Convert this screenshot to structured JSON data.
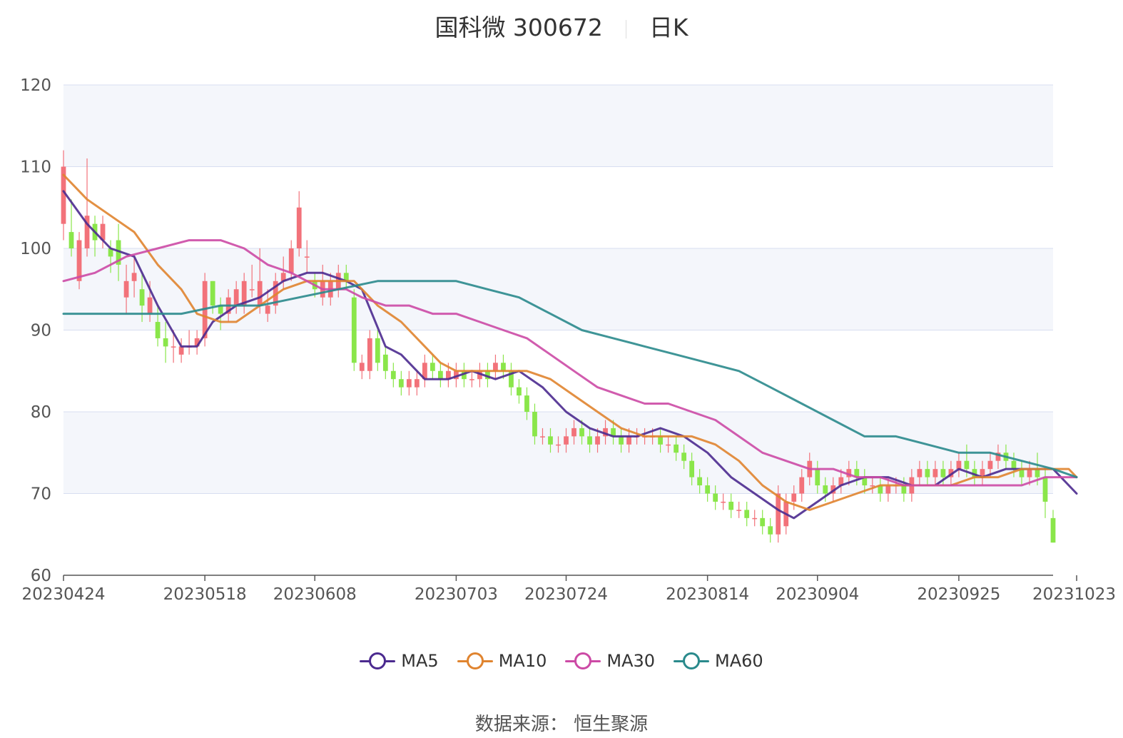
{
  "title": {
    "main": "国科微 300672",
    "sub": "日K"
  },
  "source": "数据来源： 恒生聚源",
  "legend": [
    {
      "name": "MA5",
      "color": "#4b2a8f"
    },
    {
      "name": "MA10",
      "color": "#e0842f"
    },
    {
      "name": "MA30",
      "color": "#cc4aa5"
    },
    {
      "name": "MA60",
      "color": "#2a8a8c"
    }
  ],
  "colors": {
    "up": "#f2727a",
    "down": "#8ae64a",
    "band": "#f4f6fb",
    "grid": "#d8def0"
  },
  "chart_data": {
    "type": "candlestick",
    "y_ticks": [
      60,
      70,
      80,
      90,
      100,
      110,
      120
    ],
    "ylim": [
      60,
      120
    ],
    "x_tick_labels": [
      "20230424",
      "20230518",
      "20230608",
      "20230703",
      "20230724",
      "20230814",
      "20230904",
      "20230925",
      "20231023"
    ],
    "x_tick_index": [
      0,
      18,
      32,
      50,
      64,
      82,
      96,
      114,
      129
    ],
    "candles": [
      [
        103,
        110,
        112,
        101
      ],
      [
        102,
        100,
        106,
        99
      ],
      [
        96,
        101,
        102,
        95
      ],
      [
        100,
        104,
        111,
        99
      ],
      [
        103,
        101,
        104,
        99
      ],
      [
        101,
        103,
        104,
        100
      ],
      [
        100,
        99,
        101,
        97
      ],
      [
        101,
        98,
        103,
        96
      ],
      [
        94,
        96,
        98,
        92
      ],
      [
        96,
        97,
        99,
        94
      ],
      [
        95,
        93,
        97,
        91
      ],
      [
        92,
        94,
        96,
        91
      ],
      [
        91,
        89,
        93,
        88
      ],
      [
        89,
        88,
        91,
        86
      ],
      [
        88,
        88,
        90,
        86
      ],
      [
        87,
        88,
        89,
        86
      ],
      [
        88,
        88,
        90,
        87
      ],
      [
        88,
        89,
        90,
        87
      ],
      [
        89,
        96,
        97,
        88
      ],
      [
        96,
        93,
        96,
        92
      ],
      [
        93,
        92,
        94,
        90
      ],
      [
        92,
        94,
        95,
        91
      ],
      [
        93,
        95,
        96,
        92
      ],
      [
        93,
        96,
        97,
        92
      ],
      [
        95,
        95,
        98,
        94
      ],
      [
        93,
        96,
        100,
        92
      ],
      [
        92,
        93,
        95,
        91
      ],
      [
        93,
        96,
        97,
        92
      ],
      [
        96,
        97,
        99,
        95
      ],
      [
        97,
        100,
        101,
        96
      ],
      [
        100,
        105,
        107,
        99
      ],
      [
        99,
        99,
        101,
        97
      ],
      [
        96,
        95,
        97,
        94
      ],
      [
        94,
        96,
        98,
        93
      ],
      [
        94,
        96,
        97,
        93
      ],
      [
        95,
        97,
        98,
        94
      ],
      [
        97,
        96,
        98,
        95
      ],
      [
        94,
        86,
        95,
        85
      ],
      [
        85,
        86,
        87,
        84
      ],
      [
        85,
        89,
        90,
        84
      ],
      [
        89,
        86,
        90,
        85
      ],
      [
        87,
        85,
        88,
        84
      ],
      [
        85,
        84,
        86,
        83
      ],
      [
        84,
        83,
        85,
        82
      ],
      [
        83,
        84,
        85,
        82
      ],
      [
        83,
        84,
        85,
        82
      ],
      [
        84,
        86,
        87,
        83
      ],
      [
        86,
        85,
        87,
        84
      ],
      [
        85,
        84,
        86,
        83
      ],
      [
        84,
        85,
        86,
        83
      ],
      [
        84,
        85,
        86,
        83
      ],
      [
        85,
        84,
        86,
        83
      ],
      [
        84,
        84,
        85,
        83
      ],
      [
        84,
        85,
        86,
        83
      ],
      [
        85,
        84,
        86,
        83
      ],
      [
        85,
        86,
        87,
        84
      ],
      [
        86,
        85,
        87,
        84
      ],
      [
        85,
        83,
        86,
        82
      ],
      [
        83,
        82,
        84,
        81
      ],
      [
        82,
        80,
        83,
        79
      ],
      [
        80,
        77,
        81,
        76
      ],
      [
        77,
        77,
        78,
        76
      ],
      [
        77,
        76,
        78,
        75
      ],
      [
        76,
        76,
        77,
        75
      ],
      [
        76,
        77,
        78,
        75
      ],
      [
        77,
        78,
        79,
        76
      ],
      [
        78,
        77,
        79,
        76
      ],
      [
        77,
        76,
        78,
        75
      ],
      [
        76,
        77,
        78,
        75
      ],
      [
        77,
        78,
        79,
        76
      ],
      [
        78,
        77,
        79,
        76
      ],
      [
        77,
        76,
        78,
        75
      ],
      [
        76,
        77,
        78,
        75
      ],
      [
        77,
        77,
        78,
        76
      ],
      [
        77,
        77,
        78,
        76
      ],
      [
        77,
        77,
        78,
        76
      ],
      [
        77,
        76,
        78,
        75
      ],
      [
        76,
        76,
        77,
        75
      ],
      [
        76,
        75,
        77,
        74
      ],
      [
        75,
        74,
        76,
        73
      ],
      [
        74,
        72,
        75,
        71
      ],
      [
        72,
        71,
        73,
        70
      ],
      [
        71,
        70,
        72,
        69
      ],
      [
        70,
        69,
        71,
        68
      ],
      [
        69,
        69,
        70,
        68
      ],
      [
        69,
        68,
        70,
        67
      ],
      [
        68,
        68,
        69,
        67
      ],
      [
        68,
        67,
        69,
        66
      ],
      [
        67,
        67,
        68,
        66
      ],
      [
        67,
        66,
        68,
        65
      ],
      [
        66,
        65,
        67,
        64
      ],
      [
        65,
        70,
        71,
        64
      ],
      [
        66,
        69,
        70,
        65
      ],
      [
        69,
        70,
        71,
        68
      ],
      [
        70,
        72,
        73,
        69
      ],
      [
        72,
        74,
        75,
        71
      ],
      [
        73,
        71,
        74,
        70
      ],
      [
        71,
        70,
        72,
        69
      ],
      [
        70,
        71,
        72,
        69
      ],
      [
        71,
        72,
        73,
        70
      ],
      [
        72,
        73,
        74,
        71
      ],
      [
        73,
        72,
        74,
        71
      ],
      [
        72,
        71,
        73,
        70
      ],
      [
        71,
        71,
        72,
        70
      ],
      [
        71,
        70,
        72,
        69
      ],
      [
        70,
        71,
        72,
        69
      ],
      [
        71,
        71,
        72,
        70
      ],
      [
        71,
        70,
        72,
        69
      ],
      [
        70,
        72,
        73,
        69
      ],
      [
        72,
        73,
        74,
        71
      ],
      [
        73,
        72,
        74,
        71
      ],
      [
        72,
        73,
        74,
        71
      ],
      [
        73,
        72,
        74,
        71
      ],
      [
        72,
        73,
        74,
        71
      ],
      [
        73,
        74,
        75,
        72
      ],
      [
        74,
        73,
        76,
        72
      ],
      [
        73,
        72,
        74,
        71
      ],
      [
        72,
        73,
        74,
        71
      ],
      [
        73,
        74,
        75,
        72
      ],
      [
        74,
        75,
        76,
        73
      ],
      [
        75,
        74,
        76,
        73
      ],
      [
        74,
        73,
        75,
        72
      ],
      [
        73,
        72,
        74,
        71
      ],
      [
        72,
        73,
        74,
        71
      ],
      [
        73,
        72,
        75,
        71
      ],
      [
        72,
        69,
        73,
        67
      ],
      [
        67,
        64,
        68,
        64
      ]
    ],
    "series": [
      {
        "name": "MA5",
        "points": [
          [
            0,
            107
          ],
          [
            3,
            103
          ],
          [
            6,
            100
          ],
          [
            9,
            99
          ],
          [
            12,
            93
          ],
          [
            15,
            88
          ],
          [
            17,
            88
          ],
          [
            19,
            91
          ],
          [
            22,
            93
          ],
          [
            25,
            94
          ],
          [
            28,
            96
          ],
          [
            31,
            97
          ],
          [
            33,
            97
          ],
          [
            36,
            96
          ],
          [
            38,
            95
          ],
          [
            41,
            88
          ],
          [
            43,
            87
          ],
          [
            46,
            84
          ],
          [
            49,
            84
          ],
          [
            52,
            85
          ],
          [
            55,
            84
          ],
          [
            58,
            85
          ],
          [
            61,
            83
          ],
          [
            64,
            80
          ],
          [
            67,
            78
          ],
          [
            70,
            77
          ],
          [
            73,
            77
          ],
          [
            76,
            78
          ],
          [
            79,
            77
          ],
          [
            82,
            75
          ],
          [
            85,
            72
          ],
          [
            88,
            70
          ],
          [
            91,
            68
          ],
          [
            93,
            67
          ],
          [
            96,
            69
          ],
          [
            99,
            71
          ],
          [
            102,
            72
          ],
          [
            105,
            72
          ],
          [
            108,
            71
          ],
          [
            111,
            71
          ],
          [
            114,
            73
          ],
          [
            117,
            72
          ],
          [
            120,
            73
          ],
          [
            123,
            73
          ],
          [
            126,
            73
          ],
          [
            128,
            71
          ],
          [
            129,
            70
          ]
        ]
      },
      {
        "name": "MA10",
        "points": [
          [
            0,
            109
          ],
          [
            3,
            106
          ],
          [
            6,
            104
          ],
          [
            9,
            102
          ],
          [
            12,
            98
          ],
          [
            15,
            95
          ],
          [
            17,
            92
          ],
          [
            20,
            91
          ],
          [
            22,
            91
          ],
          [
            25,
            93
          ],
          [
            28,
            95
          ],
          [
            31,
            96
          ],
          [
            34,
            96
          ],
          [
            37,
            96
          ],
          [
            40,
            93
          ],
          [
            43,
            91
          ],
          [
            46,
            88
          ],
          [
            48,
            86
          ],
          [
            50,
            85
          ],
          [
            53,
            85
          ],
          [
            56,
            85
          ],
          [
            59,
            85
          ],
          [
            62,
            84
          ],
          [
            65,
            82
          ],
          [
            68,
            80
          ],
          [
            71,
            78
          ],
          [
            74,
            77
          ],
          [
            77,
            77
          ],
          [
            80,
            77
          ],
          [
            83,
            76
          ],
          [
            86,
            74
          ],
          [
            89,
            71
          ],
          [
            92,
            69
          ],
          [
            95,
            68
          ],
          [
            98,
            69
          ],
          [
            101,
            70
          ],
          [
            104,
            71
          ],
          [
            107,
            71
          ],
          [
            110,
            71
          ],
          [
            113,
            71
          ],
          [
            116,
            72
          ],
          [
            119,
            72
          ],
          [
            122,
            73
          ],
          [
            125,
            73
          ],
          [
            128,
            73
          ],
          [
            129,
            72
          ]
        ]
      },
      {
        "name": "MA30",
        "points": [
          [
            0,
            96
          ],
          [
            4,
            97
          ],
          [
            8,
            99
          ],
          [
            12,
            100
          ],
          [
            16,
            101
          ],
          [
            18,
            101
          ],
          [
            20,
            101
          ],
          [
            23,
            100
          ],
          [
            26,
            98
          ],
          [
            29,
            97
          ],
          [
            33,
            95
          ],
          [
            36,
            95
          ],
          [
            38,
            94
          ],
          [
            41,
            93
          ],
          [
            44,
            93
          ],
          [
            47,
            92
          ],
          [
            50,
            92
          ],
          [
            53,
            91
          ],
          [
            56,
            90
          ],
          [
            59,
            89
          ],
          [
            62,
            87
          ],
          [
            65,
            85
          ],
          [
            68,
            83
          ],
          [
            71,
            82
          ],
          [
            74,
            81
          ],
          [
            77,
            81
          ],
          [
            80,
            80
          ],
          [
            83,
            79
          ],
          [
            86,
            77
          ],
          [
            89,
            75
          ],
          [
            92,
            74
          ],
          [
            95,
            73
          ],
          [
            98,
            73
          ],
          [
            101,
            72
          ],
          [
            104,
            72
          ],
          [
            107,
            71
          ],
          [
            110,
            71
          ],
          [
            113,
            71
          ],
          [
            116,
            71
          ],
          [
            119,
            71
          ],
          [
            122,
            71
          ],
          [
            125,
            72
          ],
          [
            128,
            72
          ],
          [
            129,
            72
          ]
        ]
      },
      {
        "name": "MA60",
        "points": [
          [
            0,
            92
          ],
          [
            5,
            92
          ],
          [
            10,
            92
          ],
          [
            15,
            92
          ],
          [
            20,
            93
          ],
          [
            25,
            93
          ],
          [
            30,
            94
          ],
          [
            35,
            95
          ],
          [
            40,
            96
          ],
          [
            45,
            96
          ],
          [
            50,
            96
          ],
          [
            54,
            95
          ],
          [
            58,
            94
          ],
          [
            62,
            92
          ],
          [
            66,
            90
          ],
          [
            70,
            89
          ],
          [
            74,
            88
          ],
          [
            78,
            87
          ],
          [
            82,
            86
          ],
          [
            86,
            85
          ],
          [
            90,
            83
          ],
          [
            94,
            81
          ],
          [
            98,
            79
          ],
          [
            102,
            77
          ],
          [
            106,
            77
          ],
          [
            110,
            76
          ],
          [
            114,
            75
          ],
          [
            118,
            75
          ],
          [
            122,
            74
          ],
          [
            126,
            73
          ],
          [
            129,
            72
          ]
        ]
      }
    ]
  }
}
